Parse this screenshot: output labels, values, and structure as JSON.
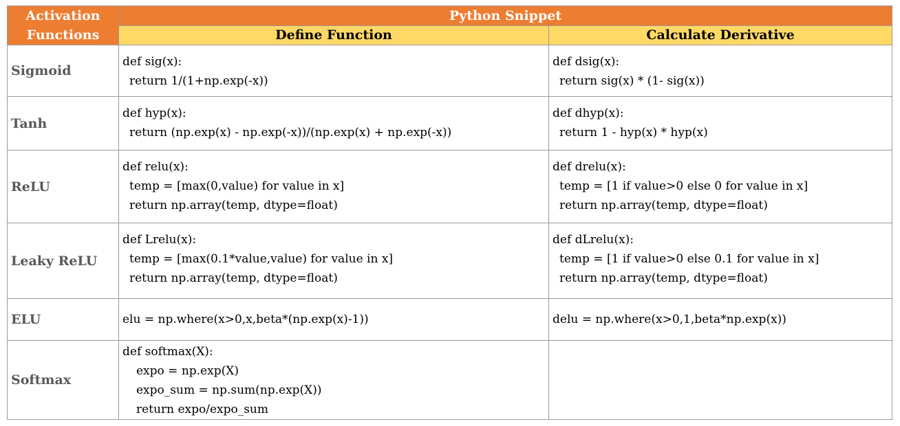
{
  "header": {
    "activation_label_line1": "Activation",
    "activation_label_line2": "Functions",
    "python_snippet": "Python Snippet",
    "define_function": "Define Function",
    "calculate_derivative": "Calculate Derivative"
  },
  "colors": {
    "header_orange": "#ed7d31",
    "subheader_yellow": "#ffd966",
    "name_gray": "#595959"
  },
  "rows": [
    {
      "name": "Sigmoid",
      "define": [
        "def sig(x):",
        "return 1/(1+np.exp(-x))"
      ],
      "derivative": [
        "def dsig(x):",
        "return sig(x) * (1- sig(x))"
      ]
    },
    {
      "name": "Tanh",
      "define": [
        "def hyp(x):",
        "return (np.exp(x) - np.exp(-x))/(np.exp(x) + np.exp(-x))"
      ],
      "derivative": [
        "def dhyp(x):",
        "return 1 - hyp(x) * hyp(x)"
      ]
    },
    {
      "name": "ReLU",
      "define": [
        "def relu(x):",
        "temp = [max(0,value) for value in x]",
        "return np.array(temp, dtype=float)"
      ],
      "derivative": [
        "def drelu(x):",
        "temp = [1 if value>0 else 0 for value in x]",
        "return np.array(temp, dtype=float)"
      ]
    },
    {
      "name": "Leaky ReLU",
      "define": [
        "def Lrelu(x):",
        "temp = [max(0.1*value,value) for value in x]",
        "return np.array(temp, dtype=float)"
      ],
      "derivative": [
        "def dLrelu(x):",
        "temp = [1 if value>0 else 0.1 for value in x]",
        "return np.array(temp, dtype=float)"
      ]
    },
    {
      "name": "ELU",
      "define": [
        "elu = np.where(x>0,x,beta*(np.exp(x)-1))"
      ],
      "derivative": [
        "delu = np.where(x>0,1,beta*np.exp(x))"
      ]
    },
    {
      "name": "Softmax",
      "define": [
        "def softmax(X):",
        "expo = np.exp(X)",
        "expo_sum = np.sum(np.exp(X))",
        "return expo/expo_sum"
      ],
      "derivative": []
    }
  ]
}
